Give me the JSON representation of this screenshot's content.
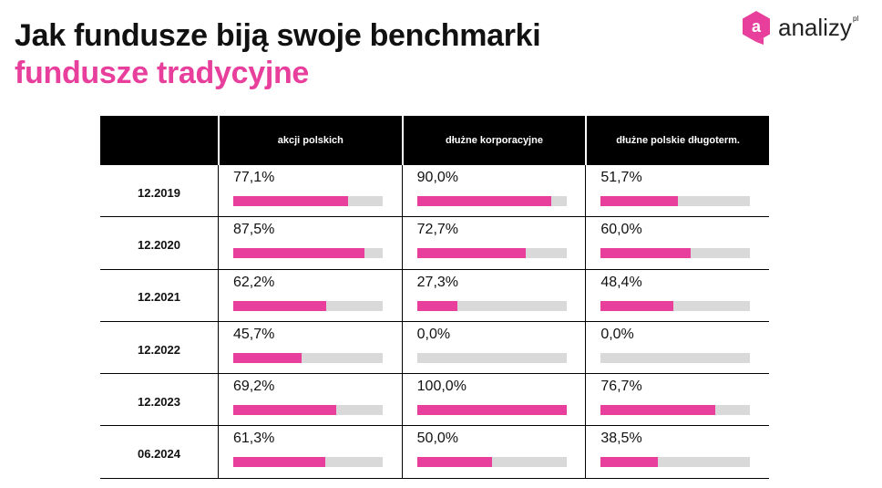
{
  "header": {
    "title": "Jak fundusze biją swoje benchmarki",
    "subtitle": "fundusze tradycyjne"
  },
  "logo": {
    "text": "analizy",
    "suffix": "pl",
    "brand_color": "#e83e9c"
  },
  "colors": {
    "bar_fill": "#e83e9c",
    "bar_track": "#d9d9d9",
    "header_bg": "#000000"
  },
  "chart_data": {
    "type": "table",
    "title": "Jak fundusze biją swoje benchmarki",
    "subtitle": "fundusze tradycyjne",
    "columns": [
      "akcji polskich",
      "dłużne korporacyjne",
      "dłużne polskie długoterm."
    ],
    "rows": [
      "12.2019",
      "12.2020",
      "12.2021",
      "12.2022",
      "12.2023",
      "06.2024"
    ],
    "values": [
      [
        77.1,
        90.0,
        51.7
      ],
      [
        87.5,
        72.7,
        60.0
      ],
      [
        62.2,
        27.3,
        48.4
      ],
      [
        45.7,
        0.0,
        0.0
      ],
      [
        69.2,
        100.0,
        76.7
      ],
      [
        61.3,
        50.0,
        38.5
      ]
    ],
    "labels": [
      [
        "77,1%",
        "90,0%",
        "51,7%"
      ],
      [
        "87,5%",
        "72,7%",
        "60,0%"
      ],
      [
        "62,2%",
        "27,3%",
        "48,4%"
      ],
      [
        "45,7%",
        "0,0%",
        "0,0%"
      ],
      [
        "69,2%",
        "100,0%",
        "76,7%"
      ],
      [
        "61,3%",
        "50,0%",
        "38,5%"
      ]
    ],
    "unit": "%",
    "range": [
      0,
      100
    ]
  }
}
